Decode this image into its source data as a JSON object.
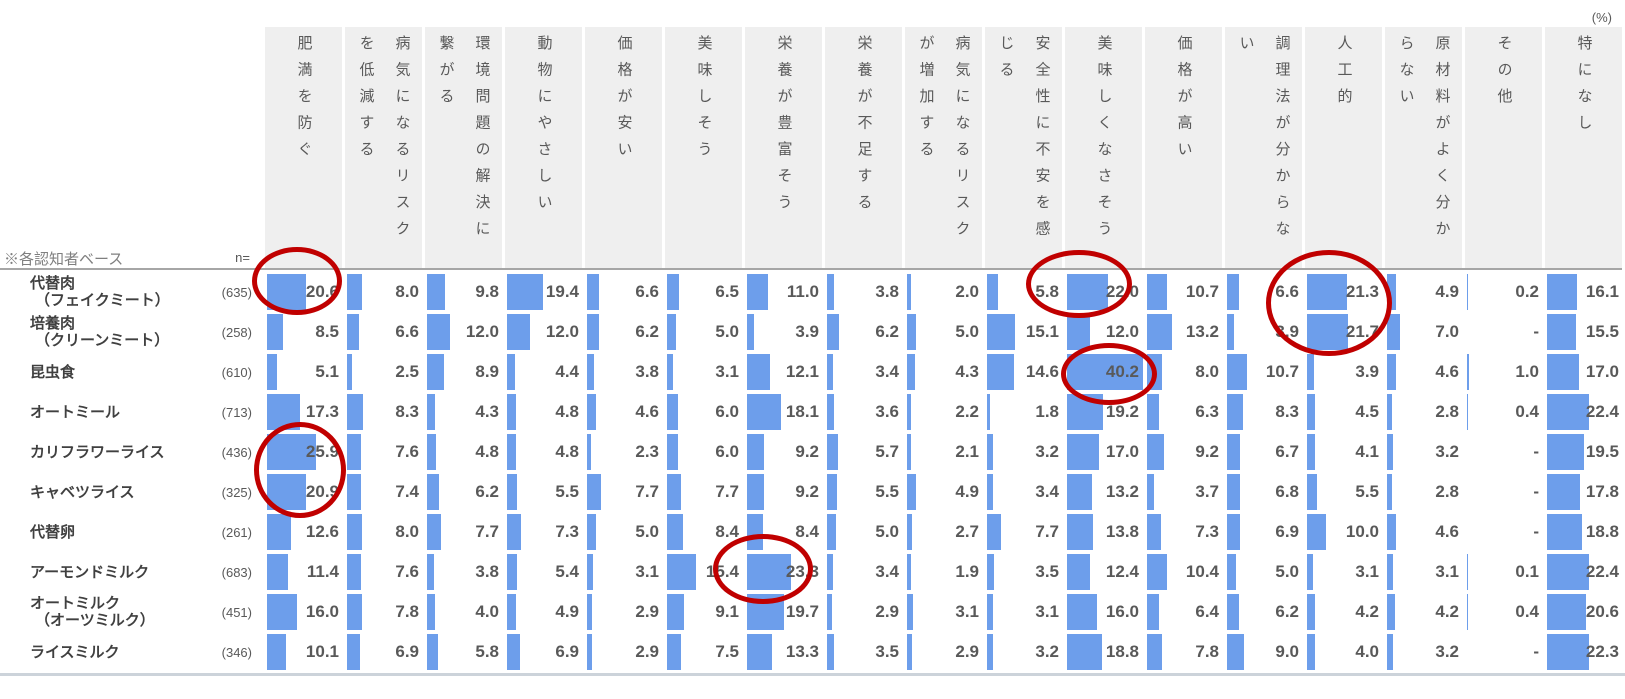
{
  "labels": {
    "unit": "(%)",
    "base_note": "※各認知者ベース",
    "n_label": "n="
  },
  "colors": {
    "bar": "#6d9eeb",
    "header_band": "#efefef",
    "highlight_circle": "#c00000",
    "text": "#595959"
  },
  "chart_data": {
    "type": "table",
    "title": "",
    "unit": "%",
    "legend_position": "none",
    "grid": false,
    "columns": [
      "肥満を防ぐ",
      "病気になるリスクを低減する",
      "環境問題の解決に繋がる",
      "動物にやさしい",
      "価格が安い",
      "美味しそう",
      "栄養が豊富そう",
      "栄養が不足する",
      "病気になるリスクが増加する",
      "安全性に不安を感じる",
      "美味しくなさそう",
      "価格が高い",
      "調理法が分からない",
      "人工的",
      "原材料がよく分からない",
      "その他",
      "特になし"
    ],
    "rows": [
      {
        "label": [
          "代替肉",
          "（フェイクミート）"
        ],
        "n": 635,
        "values": [
          20.6,
          8.0,
          9.8,
          19.4,
          6.6,
          6.5,
          11.0,
          3.8,
          2.0,
          5.8,
          22.0,
          10.7,
          6.6,
          21.3,
          4.9,
          0.2,
          16.1
        ]
      },
      {
        "label": [
          "培養肉",
          "（クリーンミート）"
        ],
        "n": 258,
        "values": [
          8.5,
          6.6,
          12.0,
          12.0,
          6.2,
          5.0,
          3.9,
          6.2,
          5.0,
          15.1,
          12.0,
          13.2,
          3.9,
          21.7,
          7.0,
          "-",
          15.5
        ]
      },
      {
        "label": [
          "昆虫食"
        ],
        "n": 610,
        "values": [
          5.1,
          2.5,
          8.9,
          4.4,
          3.8,
          3.1,
          12.1,
          3.4,
          4.3,
          14.6,
          40.2,
          8.0,
          10.7,
          3.9,
          4.6,
          1.0,
          17.0
        ]
      },
      {
        "label": [
          "オートミール"
        ],
        "n": 713,
        "values": [
          17.3,
          8.3,
          4.3,
          4.8,
          4.6,
          6.0,
          18.1,
          3.6,
          2.2,
          1.8,
          19.2,
          6.3,
          8.3,
          4.5,
          2.8,
          0.4,
          22.4
        ]
      },
      {
        "label": [
          "カリフラワーライス"
        ],
        "n": 436,
        "values": [
          25.9,
          7.6,
          4.8,
          4.8,
          2.3,
          6.0,
          9.2,
          5.7,
          2.1,
          3.2,
          17.0,
          9.2,
          6.7,
          4.1,
          3.2,
          "-",
          19.5
        ]
      },
      {
        "label": [
          "キャベツライス"
        ],
        "n": 325,
        "values": [
          20.9,
          7.4,
          6.2,
          5.5,
          7.7,
          7.7,
          9.2,
          5.5,
          4.9,
          3.4,
          13.2,
          3.7,
          6.8,
          5.5,
          2.8,
          "-",
          17.8
        ]
      },
      {
        "label": [
          "代替卵"
        ],
        "n": 261,
        "values": [
          12.6,
          8.0,
          7.7,
          7.3,
          5.0,
          8.4,
          8.4,
          5.0,
          2.7,
          7.7,
          13.8,
          7.3,
          6.9,
          10.0,
          4.6,
          "-",
          18.8
        ]
      },
      {
        "label": [
          "アーモンドミルク"
        ],
        "n": 683,
        "values": [
          11.4,
          7.6,
          3.8,
          5.4,
          3.1,
          15.4,
          23.3,
          3.4,
          1.9,
          3.5,
          12.4,
          10.4,
          5.0,
          3.1,
          3.1,
          0.1,
          22.4
        ]
      },
      {
        "label": [
          "オートミルク",
          "（オーツミルク）"
        ],
        "n": 451,
        "values": [
          16.0,
          7.8,
          4.0,
          4.9,
          2.9,
          9.1,
          19.7,
          2.9,
          3.1,
          3.1,
          16.0,
          6.4,
          6.2,
          4.2,
          4.2,
          0.4,
          20.6
        ]
      },
      {
        "label": [
          "ライスミルク"
        ],
        "n": 346,
        "values": [
          10.1,
          6.9,
          5.8,
          6.9,
          2.9,
          7.5,
          13.3,
          3.5,
          2.9,
          3.2,
          18.8,
          7.8,
          9.0,
          4.0,
          3.2,
          "-",
          22.3
        ]
      }
    ],
    "highlights": [
      {
        "row": 0,
        "col": 0,
        "rowspan": 1
      },
      {
        "row": 0,
        "col": 10,
        "rowspan": 1
      },
      {
        "row": 0,
        "col": 13,
        "rowspan": 2
      },
      {
        "row": 2,
        "col": 10,
        "rowspan": 1
      },
      {
        "row": 4,
        "col": 0,
        "rowspan": 2
      },
      {
        "row": 7,
        "col": 6,
        "rowspan": 1
      }
    ]
  }
}
